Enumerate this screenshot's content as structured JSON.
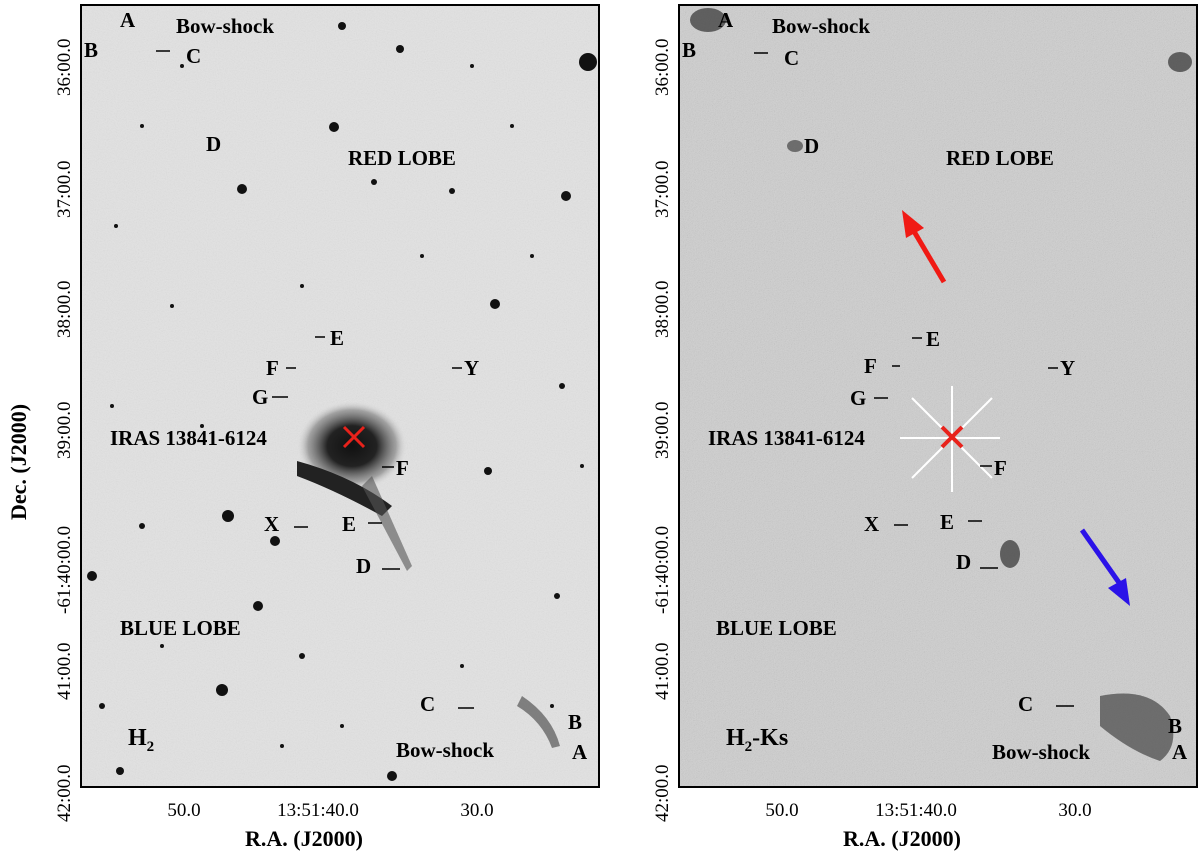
{
  "panels": [
    {
      "id": "left",
      "band_label": "H",
      "band_sub": "2",
      "band_suffix": "",
      "red_lobe": "RED LOBE",
      "blue_lobe": "BLUE LOBE",
      "source": "IRAS 13841-6124",
      "bow_top": "Bow-shock",
      "bow_bottom": "Bow-shock",
      "knots": {
        "A_top": "A",
        "B_top": "B",
        "C_top": "C",
        "D_top": "D",
        "E_top": "E",
        "F_top": "F",
        "G": "G",
        "Y": "Y",
        "F_bot": "F",
        "X": "X",
        "E_bot": "E",
        "D_bot": "D",
        "C_bot": "C",
        "B_bot": "B",
        "A_bot": "A"
      }
    },
    {
      "id": "right",
      "band_label": "H",
      "band_sub": "2",
      "band_suffix": "-Ks",
      "red_lobe": "RED LOBE",
      "blue_lobe": "BLUE LOBE",
      "source": "IRAS 13841-6124",
      "bow_top": "Bow-shock",
      "bow_bottom": "Bow-shock",
      "knots": {
        "A_top": "A",
        "B_top": "B",
        "C_top": "C",
        "D_top": "D",
        "E_top": "E",
        "F_top": "F",
        "G": "G",
        "Y": "Y",
        "F_bot": "F",
        "X": "X",
        "E_bot": "E",
        "D_bot": "D",
        "C_bot": "C",
        "B_bot": "B",
        "A_bot": "A"
      }
    }
  ],
  "axes": {
    "xlabel": "R.A. (J2000)",
    "ylabel": "Dec. (J2000)",
    "xticks": [
      "50.0",
      "13:51:40.0",
      "30.0"
    ],
    "yticks": [
      "36:00.0",
      "37:00.0",
      "38:00.0",
      "39:00.0",
      "-61:40:00.0",
      "41:00.0",
      "42:00.0"
    ]
  },
  "colors": {
    "marker": "#e8221b",
    "red_arrow": "#f01a14",
    "blue_arrow": "#2b12e8"
  }
}
